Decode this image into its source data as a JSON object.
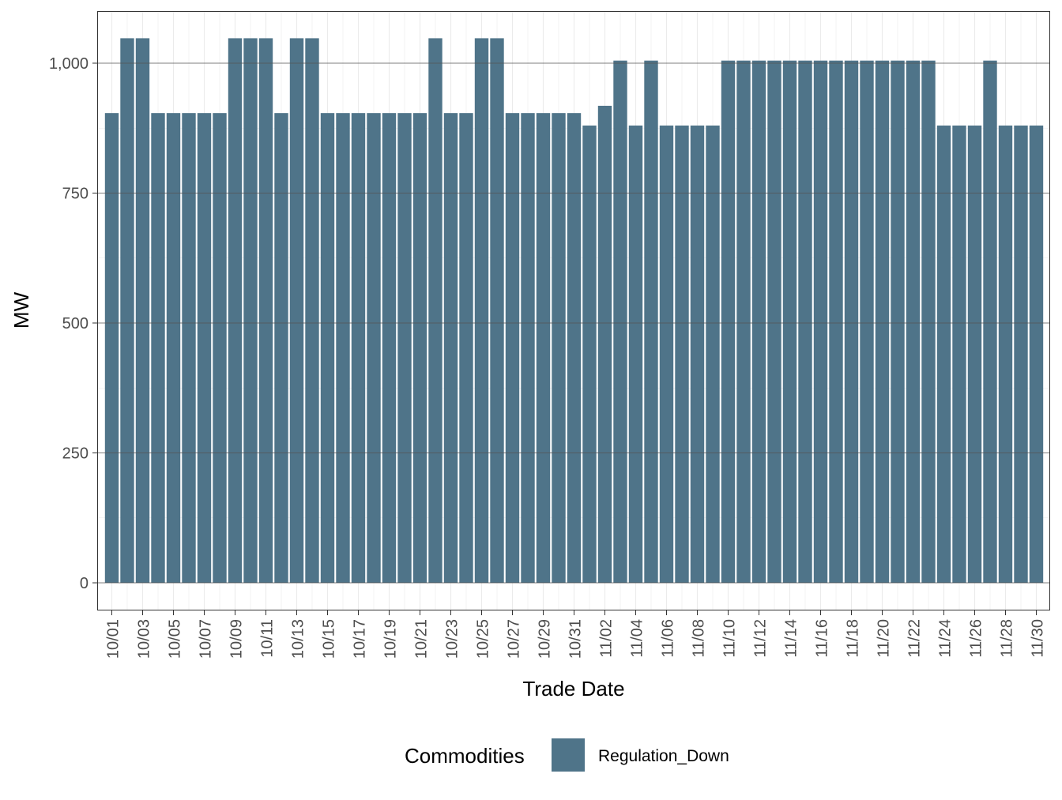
{
  "chart_data": {
    "type": "bar",
    "title": "",
    "xlabel": "Trade Date",
    "ylabel": "MW",
    "ylim": [
      -50,
      1100
    ],
    "yticks": [
      0,
      250,
      500,
      750,
      1000
    ],
    "ytick_labels": [
      "0",
      "250",
      "500",
      "750",
      "1,000"
    ],
    "grid": true,
    "legend_position": "bottom",
    "legend_title": "Commodities",
    "colors": {
      "Regulation_Down": "#4f7489"
    },
    "categories": [
      "10/01",
      "10/02",
      "10/03",
      "10/04",
      "10/05",
      "10/06",
      "10/07",
      "10/08",
      "10/09",
      "10/10",
      "10/11",
      "10/12",
      "10/13",
      "10/14",
      "10/15",
      "10/16",
      "10/17",
      "10/18",
      "10/19",
      "10/20",
      "10/21",
      "10/22",
      "10/23",
      "10/24",
      "10/25",
      "10/26",
      "10/27",
      "10/28",
      "10/29",
      "10/30",
      "10/31",
      "11/01",
      "11/02",
      "11/03",
      "11/04",
      "11/05",
      "11/06",
      "11/07",
      "11/08",
      "11/09",
      "11/10",
      "11/11",
      "11/12",
      "11/13",
      "11/14",
      "11/15",
      "11/16",
      "11/17",
      "11/18",
      "11/19",
      "11/20",
      "11/21",
      "11/22",
      "11/23",
      "11/24",
      "11/25",
      "11/26",
      "11/27",
      "11/28",
      "11/29",
      "11/30"
    ],
    "xtick_labels": [
      "10/01",
      "10/03",
      "10/05",
      "10/07",
      "10/09",
      "10/11",
      "10/13",
      "10/15",
      "10/17",
      "10/19",
      "10/21",
      "10/23",
      "10/25",
      "10/27",
      "10/29",
      "10/31",
      "11/02",
      "11/04",
      "11/06",
      "11/08",
      "11/10",
      "11/12",
      "11/14",
      "11/16",
      "11/18",
      "11/20",
      "11/22",
      "11/24",
      "11/26",
      "11/28",
      "11/30"
    ],
    "series": [
      {
        "name": "Regulation_Down",
        "values": [
          904,
          1048,
          1048,
          904,
          904,
          904,
          904,
          904,
          1048,
          1048,
          1048,
          904,
          1048,
          1048,
          904,
          904,
          904,
          904,
          904,
          904,
          904,
          1048,
          904,
          904,
          1048,
          1048,
          904,
          904,
          904,
          904,
          904,
          880,
          918,
          1005,
          880,
          1005,
          880,
          880,
          880,
          880,
          1005,
          1005,
          1005,
          1005,
          1005,
          1005,
          1005,
          1005,
          1005,
          1005,
          1005,
          1005,
          1005,
          1005,
          880,
          880,
          880,
          1005,
          880,
          880,
          880
        ]
      }
    ]
  }
}
